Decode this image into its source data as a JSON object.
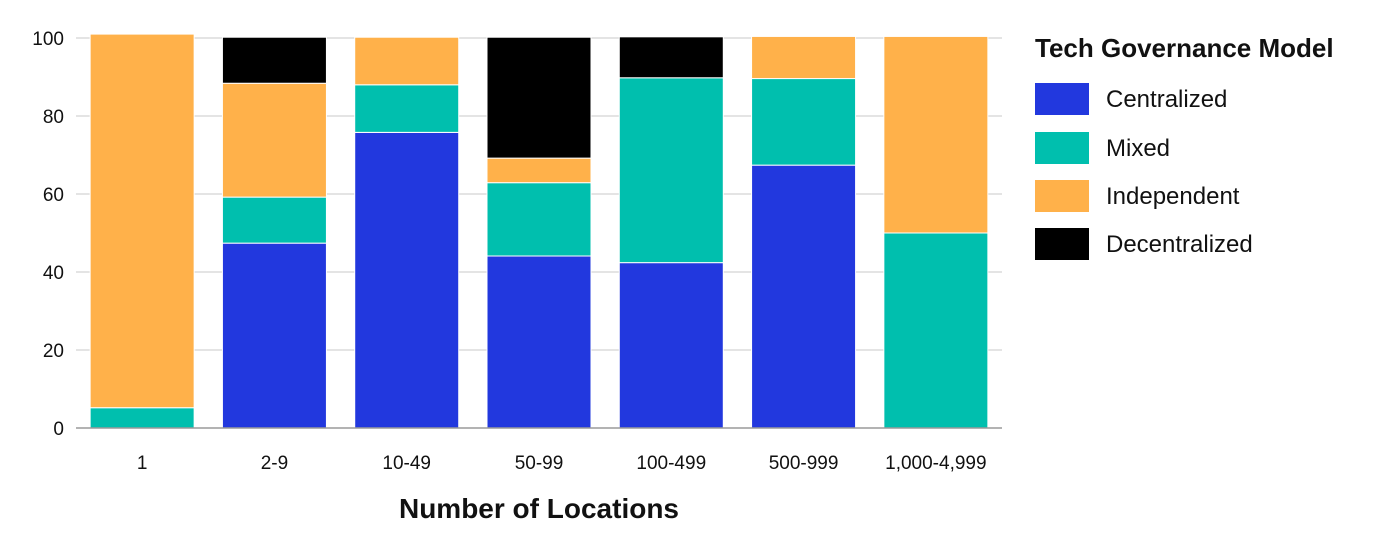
{
  "chart_data": {
    "type": "bar",
    "stacked": true,
    "title": "",
    "xlabel": "Number of Locations",
    "ylabel": "",
    "ylim": [
      0,
      100
    ],
    "yticks": [
      0,
      20,
      40,
      60,
      80,
      100
    ],
    "grid": true,
    "legend_title": "Tech Governance Model",
    "legend_position": "right",
    "categories": [
      "1",
      "2-9",
      "10-49",
      "50-99",
      "100-499",
      "500-999",
      "1,000-4,999"
    ],
    "series": [
      {
        "name": "Centralized",
        "color": "#2238de",
        "values": [
          0,
          47.4,
          75.8,
          44.1,
          42.4,
          67.4,
          0
        ]
      },
      {
        "name": "Mixed",
        "color": "#00bfae",
        "values": [
          5.2,
          11.8,
          12.2,
          18.8,
          47.4,
          22.2,
          50
        ]
      },
      {
        "name": "Independent",
        "color": "#ffb14a",
        "values": [
          95.8,
          29.2,
          12.2,
          6.3,
          0,
          10.8,
          50.4
        ]
      },
      {
        "name": "Decentralized",
        "color": "#000000",
        "values": [
          0,
          11.8,
          0,
          31.0,
          10.5,
          0,
          0
        ]
      }
    ]
  }
}
